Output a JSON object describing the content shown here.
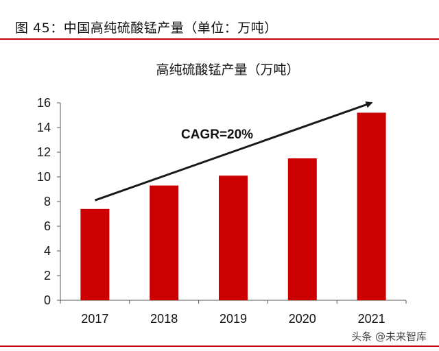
{
  "figure": {
    "label": "图 45：中国高纯硫酸锰产量（单位：万吨）"
  },
  "watermark": "头条 @未来智库",
  "chart_data": {
    "type": "bar",
    "title": "高纯硫酸锰产量（万吨）",
    "categories": [
      "2017",
      "2018",
      "2019",
      "2020",
      "2021"
    ],
    "values": [
      7.4,
      9.3,
      10.1,
      11.5,
      15.2
    ],
    "ylim": [
      0,
      16
    ],
    "yticks": [
      0,
      2,
      4,
      6,
      8,
      10,
      12,
      14,
      16
    ],
    "xlabel": "",
    "ylabel": "",
    "grid": false,
    "bar_color": "#cc0000",
    "annotation": {
      "text": "CAGR=20%",
      "arrow_from": {
        "category": "2017",
        "value": 8.1
      },
      "arrow_to": {
        "category": "2021",
        "value": 16.0
      }
    }
  }
}
